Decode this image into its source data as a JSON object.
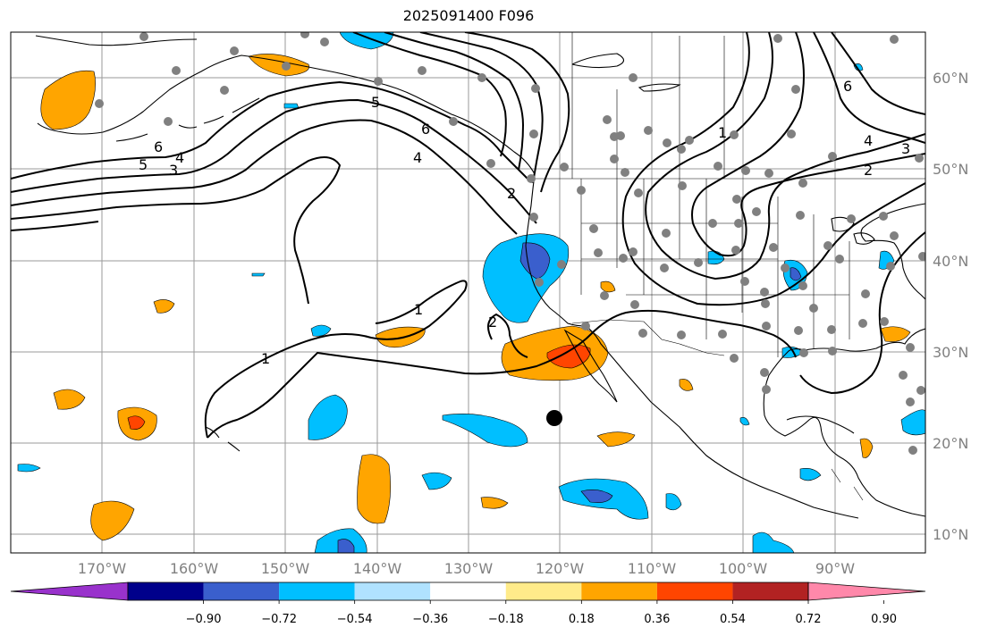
{
  "title": "2025091400 F096",
  "longitude_labels": [
    "170°W",
    "160°W",
    "150°W",
    "140°W",
    "130°W",
    "120°W",
    "110°W",
    "100°W",
    "90°W"
  ],
  "latitude_labels": [
    "60°N",
    "50°N",
    "40°N",
    "30°N",
    "20°N",
    "10°N"
  ],
  "colorbar": {
    "tick_labels": [
      "−0.90",
      "−0.72",
      "−0.54",
      "−0.36",
      "−0.18",
      "0.18",
      "0.36",
      "0.54",
      "0.72",
      "0.90"
    ],
    "colors": [
      "#9932cc",
      "#00008b",
      "#3a5fcd",
      "#00bfff",
      "#b0e2ff",
      "#ffffff",
      "#ffeb8a",
      "#ffa500",
      "#ff4500",
      "#b22222",
      "#ff88aa"
    ]
  },
  "contour_labels": [
    "1",
    "1",
    "1",
    "2",
    "2",
    "2",
    "3",
    "3",
    "4",
    "4",
    "4",
    "5",
    "5",
    "6",
    "6",
    "6"
  ],
  "colors": {
    "positive": "#ffa500",
    "strong_positive": "#ff4500",
    "negative": "#00bfff",
    "strong_negative": "#3a5fcd",
    "station": "#808080",
    "marker": "#000000"
  }
}
